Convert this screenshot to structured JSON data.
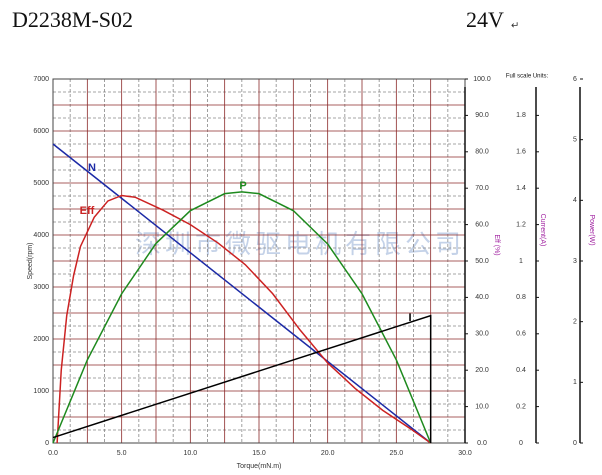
{
  "chart_data": {
    "type": "line",
    "title": "D2238M-S02",
    "subtitle": "24V",
    "subtitle_mark": "↵",
    "watermark": "深圳市微驱电机有限公司",
    "xlabel": "Torque(mN.m)",
    "ylabel": "Speed(rpm)",
    "y2label": "Eff (%)",
    "y3label": "Current(A)",
    "y4label": "Power(W)",
    "units_note": "Full scale Units:",
    "grid": true,
    "xlim": [
      0,
      30
    ],
    "xticks": [
      {
        "value": 0,
        "label": "0.0"
      },
      {
        "value": 5,
        "label": "5.0"
      },
      {
        "value": 10,
        "label": "10.0"
      },
      {
        "value": 15,
        "label": "15.0"
      },
      {
        "value": 20,
        "label": "20.0"
      },
      {
        "value": 25,
        "label": "25.0"
      },
      {
        "value": 30,
        "label": "30.0"
      }
    ],
    "ylim": [
      0,
      7000
    ],
    "yticks": [
      0,
      1000,
      2000,
      3000,
      4000,
      5000,
      6000,
      7000
    ],
    "y2lim": [
      0,
      100
    ],
    "y2ticks": [
      {
        "value": 0,
        "label": "0.0"
      },
      {
        "value": 10,
        "label": "10.0"
      },
      {
        "value": 20,
        "label": "20.0"
      },
      {
        "value": 30,
        "label": "30.0"
      },
      {
        "value": 40,
        "label": "40.0"
      },
      {
        "value": 50,
        "label": "50.0"
      },
      {
        "value": 60,
        "label": "60.0"
      },
      {
        "value": 70,
        "label": "70.0"
      },
      {
        "value": 80,
        "label": "80.0"
      },
      {
        "value": 90,
        "label": "90.0"
      },
      {
        "value": 100,
        "label": "100.0"
      }
    ],
    "y3lim": [
      0,
      2
    ],
    "y3ticks": [
      0,
      0.2,
      0.4,
      0.6,
      0.8,
      1,
      1.2,
      1.4,
      1.6,
      1.8
    ],
    "y4lim": [
      0,
      6
    ],
    "y4ticks": [
      0,
      1,
      2,
      3,
      4,
      5,
      6
    ],
    "series": [
      {
        "name": "N",
        "color": "#1c2aa6",
        "axis": "y",
        "x": [
          0,
          27.5
        ],
        "values": [
          5750,
          0
        ]
      },
      {
        "name": "Eff",
        "color": "#cc2222",
        "axis": "y2",
        "x": [
          0.3,
          0.6,
          1,
          1.5,
          2,
          3,
          4,
          5,
          6,
          8,
          10,
          12,
          14,
          16,
          18,
          20,
          22,
          24,
          26,
          27.5
        ],
        "values": [
          0,
          20,
          35,
          46,
          54,
          62,
          66.5,
          68,
          67.5,
          64,
          60,
          55,
          49,
          41,
          31,
          22,
          15,
          9,
          4,
          0
        ]
      },
      {
        "name": "P",
        "color": "#1e8a1e",
        "axis": "y4",
        "x": [
          0,
          2.5,
          5,
          7.5,
          10,
          12.5,
          13.75,
          15,
          17.5,
          20,
          22.5,
          25,
          27.5
        ],
        "values": [
          0,
          1.37,
          2.46,
          3.29,
          3.83,
          4.11,
          4.14,
          4.11,
          3.83,
          3.28,
          2.46,
          1.37,
          0
        ]
      },
      {
        "name": "I",
        "color": "#000000",
        "axis": "y3",
        "x": [
          0,
          27.5,
          27.5
        ],
        "values": [
          0.03,
          0.7,
          0
        ]
      }
    ]
  }
}
